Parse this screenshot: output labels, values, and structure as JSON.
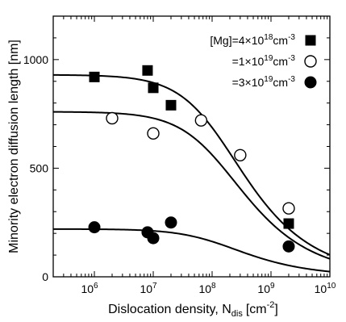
{
  "chart_data": {
    "type": "scatter",
    "xlabel_main": "Dislocation density, N",
    "xlabel_sub": "dis",
    "xlabel_unit": "[cm",
    "xlabel_unit_sup": "-2",
    "xlabel_end": "]",
    "ylabel": "Minority electron diffusion length [nm]",
    "x_scale": "log",
    "xlim": [
      200000,
      10000000000
    ],
    "ylim": [
      0,
      1200
    ],
    "x_ticks": [
      {
        "value": 1000000,
        "base": "10",
        "exp": "6"
      },
      {
        "value": 10000000,
        "base": "10",
        "exp": "7"
      },
      {
        "value": 100000000,
        "base": "10",
        "exp": "8"
      },
      {
        "value": 1000000000,
        "base": "10",
        "exp": "9"
      },
      {
        "value": 10000000000,
        "base": "10",
        "exp": "10"
      }
    ],
    "y_ticks": [
      {
        "value": 0,
        "label": "0"
      },
      {
        "value": 500,
        "label": "500"
      },
      {
        "value": 1000,
        "label": "1000"
      }
    ],
    "grid": false,
    "legend_position": "top-right",
    "series": [
      {
        "legend_parts": [
          "[Mg]=4×10",
          "18",
          "cm",
          "-3"
        ],
        "marker": "square-filled",
        "points": [
          [
            1000000,
            920
          ],
          [
            8000000,
            950
          ],
          [
            10000000,
            870
          ],
          [
            20000000,
            790
          ],
          [
            2000000000,
            245
          ]
        ]
      },
      {
        "legend_parts": [
          "=1×10",
          "19",
          "cm",
          "-3"
        ],
        "marker": "circle-open",
        "points": [
          [
            2000000,
            730
          ],
          [
            10000000,
            660
          ],
          [
            65000000,
            720
          ],
          [
            300000000,
            560
          ],
          [
            2000000000,
            315
          ]
        ]
      },
      {
        "legend_parts": [
          "=3×10",
          "19",
          "cm",
          "-3"
        ],
        "marker": "circle-filled",
        "points": [
          [
            1000000,
            228
          ],
          [
            8000000,
            205
          ],
          [
            10000000,
            178
          ],
          [
            20000000,
            250
          ],
          [
            2000000000,
            140
          ]
        ]
      }
    ],
    "fits": [
      {
        "L0": 930,
        "series_index": 0
      },
      {
        "L0": 760,
        "series_index": 1
      },
      {
        "L0": 220,
        "series_index": 2
      }
    ]
  }
}
